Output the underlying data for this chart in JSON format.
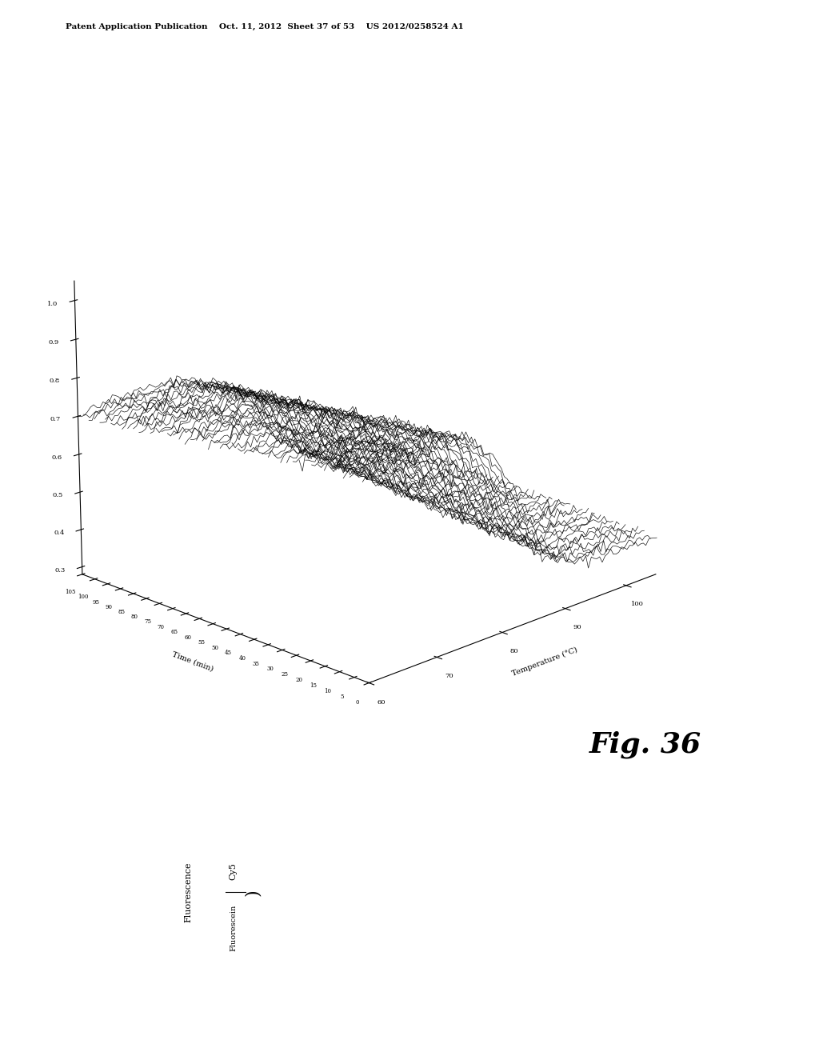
{
  "title_header": "Patent Application Publication    Oct. 11, 2012  Sheet 37 of 53    US 2012/0258524 A1",
  "fig_label": "Fig. 36",
  "ylabel_frac_top": "Cy5",
  "ylabel_frac_bot": "Fluorescein",
  "ylabel_prefix": "Fluorescence",
  "time_label": "Time (min)",
  "temp_label": "Temperature (°C)",
  "x_tick_labels": [
    "0.3",
    "0.4",
    "0.5",
    "0.6",
    "0.7",
    "0.8",
    "0.9",
    "1.0"
  ],
  "x_ticks": [
    0.3,
    0.4,
    0.5,
    0.6,
    0.7,
    0.8,
    0.9,
    1.0
  ],
  "time_ticks": [
    0,
    5,
    10,
    15,
    20,
    25,
    30,
    35,
    40,
    45,
    50,
    55,
    60,
    65,
    70,
    75,
    80,
    85,
    90,
    95,
    100,
    105
  ],
  "temp_ticks": [
    60,
    70,
    80,
    90,
    100
  ],
  "temp_tick_labels": [
    "60",
    "70",
    "80",
    "90",
    "100"
  ],
  "temp_min": 60,
  "temp_max": 105,
  "time_min": 0,
  "time_max": 105,
  "ratio_min": 0.3,
  "ratio_max": 1.0,
  "n_time_curves": 50,
  "background_color": "#ffffff",
  "line_color": "#000000",
  "elev": 18,
  "azim": 225
}
